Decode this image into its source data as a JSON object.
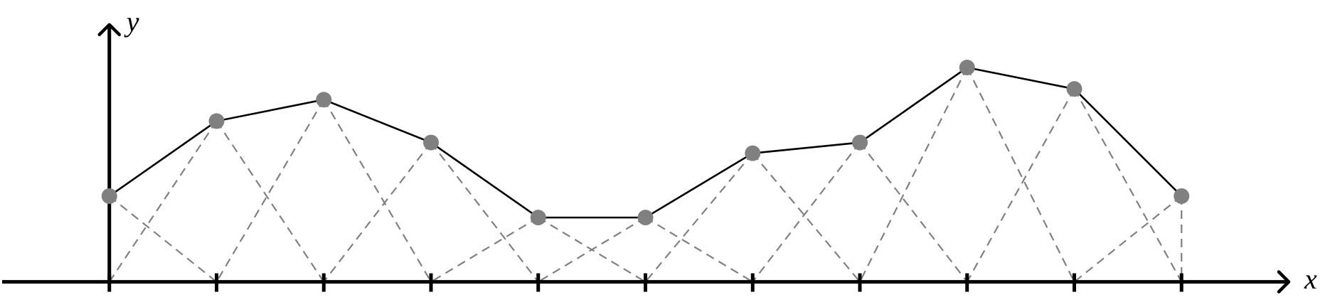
{
  "chart_data": {
    "type": "line",
    "x_label": "x",
    "y_label": "y",
    "x": [
      0,
      1,
      2,
      3,
      4,
      5,
      6,
      7,
      8,
      9,
      10
    ],
    "values": [
      0.8,
      1.5,
      1.7,
      1.3,
      0.6,
      0.6,
      1.2,
      1.3,
      2.0,
      1.8,
      0.8
    ],
    "color": "#000000",
    "point_color": "#808080",
    "basis_color": "#808080",
    "xlim": [
      -1,
      11
    ],
    "ylim": [
      0,
      2.4
    ],
    "xticks": [
      0,
      1,
      2,
      3,
      4,
      5,
      6,
      7,
      8,
      9,
      10
    ]
  }
}
